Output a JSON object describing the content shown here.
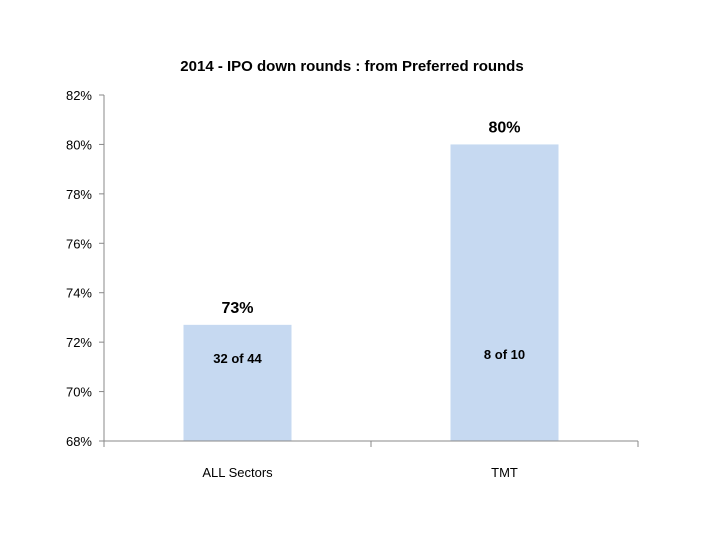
{
  "chart_data": {
    "type": "bar",
    "title": "2014  - IPO down rounds :  from Preferred rounds",
    "xlabel": "",
    "ylabel": "",
    "categories": [
      "ALL Sectors",
      "TMT"
    ],
    "values": [
      72.7,
      80
    ],
    "value_labels": [
      "73%",
      "80%"
    ],
    "inner_labels": [
      "32 of 44",
      "8 of 10"
    ],
    "ylim": [
      68,
      82
    ],
    "yticks": [
      68,
      70,
      72,
      74,
      76,
      78,
      80,
      82
    ],
    "ytick_labels": [
      "68%",
      "70%",
      "72%",
      "74%",
      "76%",
      "78%",
      "80%",
      "82%"
    ],
    "bar_color": "#c6d9f1",
    "grid": false,
    "legend": "none"
  }
}
